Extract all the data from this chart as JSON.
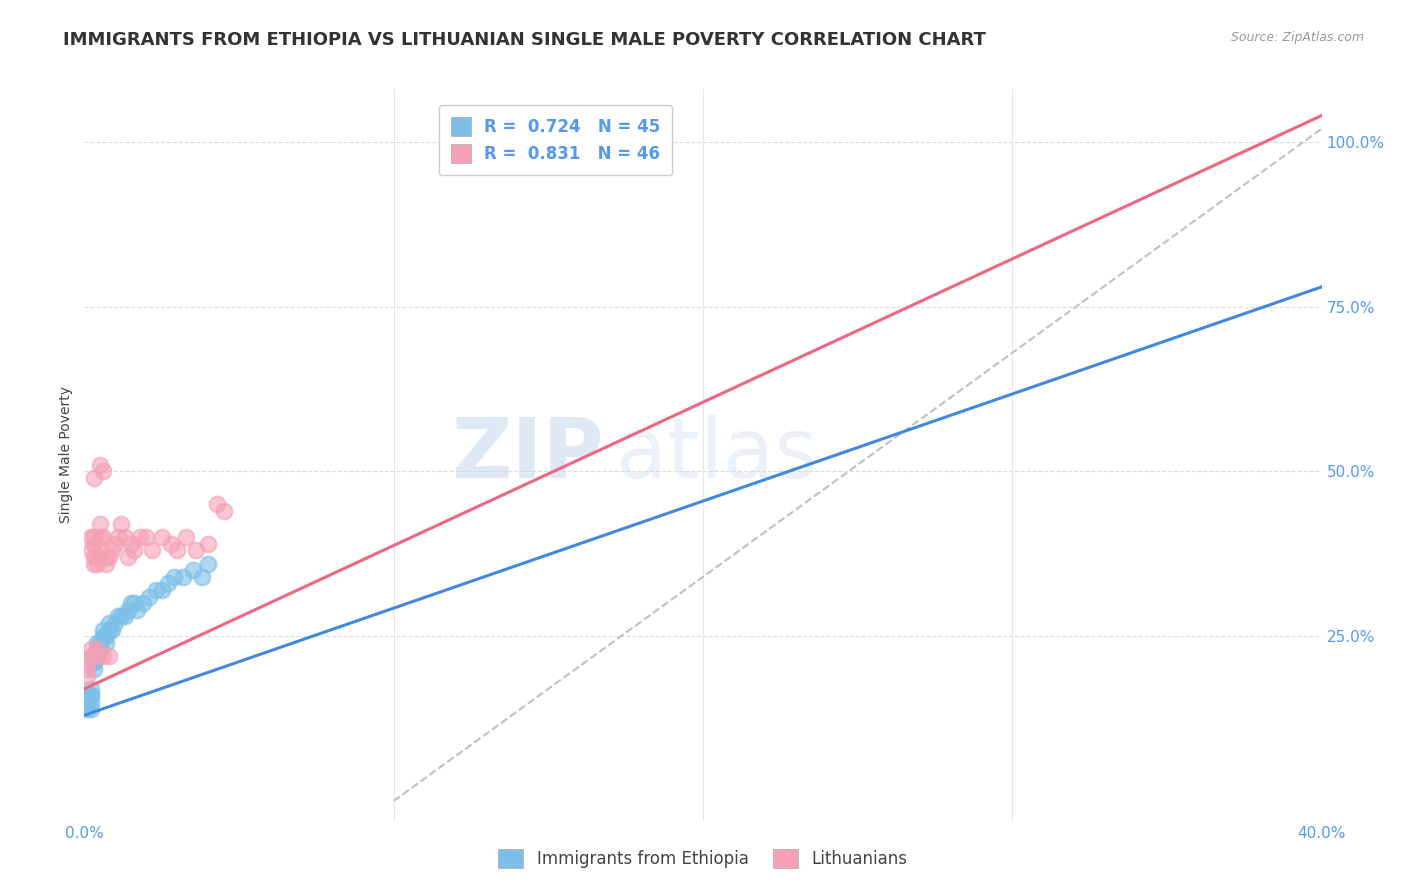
{
  "title": "IMMIGRANTS FROM ETHIOPIA VS LITHUANIAN SINGLE MALE POVERTY CORRELATION CHART",
  "source": "Source: ZipAtlas.com",
  "ylabel": "Single Male Poverty",
  "right_yticks": [
    "100.0%",
    "75.0%",
    "50.0%",
    "25.0%"
  ],
  "right_ytick_vals": [
    1.0,
    0.75,
    0.5,
    0.25
  ],
  "xlim": [
    0.0,
    0.4
  ],
  "ylim": [
    -0.03,
    1.08
  ],
  "blue_R": 0.724,
  "blue_N": 45,
  "pink_R": 0.831,
  "pink_N": 46,
  "blue_color": "#7BBFE8",
  "pink_color": "#F5A0B4",
  "blue_line_color": "#4488DD",
  "pink_line_color": "#EE6680",
  "gray_line_color": "#C0C0C0",
  "watermark_zip": "ZIP",
  "watermark_atlas": "atlas",
  "legend_blue_label": "Immigrants from Ethiopia",
  "legend_pink_label": "Lithuanians",
  "blue_x": [
    0.001,
    0.001,
    0.001,
    0.001,
    0.002,
    0.002,
    0.002,
    0.002,
    0.002,
    0.003,
    0.003,
    0.003,
    0.003,
    0.004,
    0.004,
    0.004,
    0.004,
    0.005,
    0.005,
    0.005,
    0.006,
    0.006,
    0.007,
    0.007,
    0.008,
    0.008,
    0.009,
    0.01,
    0.011,
    0.012,
    0.013,
    0.014,
    0.015,
    0.016,
    0.017,
    0.019,
    0.021,
    0.023,
    0.025,
    0.027,
    0.029,
    0.032,
    0.035,
    0.038,
    0.04
  ],
  "blue_y": [
    0.14,
    0.15,
    0.16,
    0.15,
    0.14,
    0.16,
    0.15,
    0.17,
    0.16,
    0.2,
    0.21,
    0.22,
    0.21,
    0.22,
    0.23,
    0.24,
    0.22,
    0.23,
    0.24,
    0.23,
    0.25,
    0.26,
    0.25,
    0.24,
    0.26,
    0.27,
    0.26,
    0.27,
    0.28,
    0.28,
    0.28,
    0.29,
    0.3,
    0.3,
    0.29,
    0.3,
    0.31,
    0.32,
    0.32,
    0.33,
    0.34,
    0.34,
    0.35,
    0.34,
    0.36
  ],
  "pink_x": [
    0.001,
    0.001,
    0.001,
    0.002,
    0.002,
    0.002,
    0.002,
    0.003,
    0.003,
    0.003,
    0.003,
    0.003,
    0.004,
    0.004,
    0.004,
    0.005,
    0.005,
    0.005,
    0.006,
    0.006,
    0.007,
    0.007,
    0.008,
    0.008,
    0.009,
    0.01,
    0.011,
    0.012,
    0.013,
    0.014,
    0.015,
    0.016,
    0.018,
    0.02,
    0.022,
    0.025,
    0.028,
    0.03,
    0.033,
    0.036,
    0.04,
    0.043,
    0.045,
    0.003,
    0.005,
    0.006
  ],
  "pink_y": [
    0.19,
    0.2,
    0.21,
    0.22,
    0.23,
    0.4,
    0.38,
    0.36,
    0.37,
    0.39,
    0.4,
    0.22,
    0.36,
    0.37,
    0.23,
    0.42,
    0.4,
    0.38,
    0.4,
    0.22,
    0.36,
    0.37,
    0.37,
    0.22,
    0.38,
    0.39,
    0.4,
    0.42,
    0.4,
    0.37,
    0.39,
    0.38,
    0.4,
    0.4,
    0.38,
    0.4,
    0.39,
    0.38,
    0.4,
    0.38,
    0.39,
    0.45,
    0.44,
    0.49,
    0.51,
    0.5
  ],
  "blue_line_x0": 0.0,
  "blue_line_y0": 0.13,
  "blue_line_x1": 0.4,
  "blue_line_y1": 0.78,
  "pink_line_x0": 0.0,
  "pink_line_y0": 0.17,
  "pink_line_x1": 0.4,
  "pink_line_y1": 1.04,
  "gray_line_x0": 0.1,
  "gray_line_y0": 0.0,
  "gray_line_x1": 0.4,
  "gray_line_y1": 1.02,
  "grid_color": "#DDDDDD",
  "background_color": "#FFFFFF",
  "title_fontsize": 13,
  "axis_label_fontsize": 10,
  "tick_fontsize": 11,
  "tick_color": "#5599EE"
}
